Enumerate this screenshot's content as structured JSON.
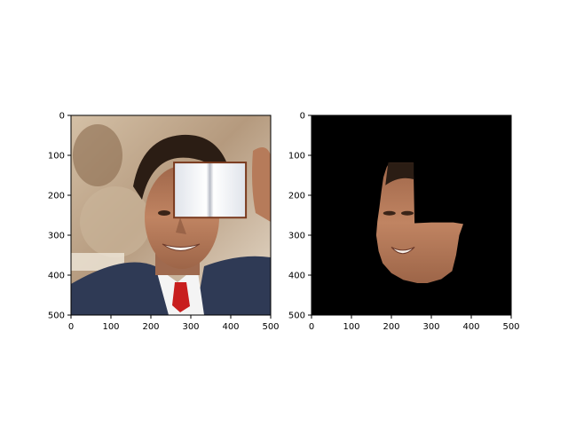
{
  "chart_data": [
    {
      "type": "image",
      "description_panel": "left",
      "xlim": [
        0,
        500
      ],
      "ylim": [
        500,
        0
      ],
      "xticks": [
        0,
        100,
        200,
        300,
        400,
        500
      ],
      "yticks": [
        0,
        100,
        200,
        300,
        400,
        500
      ],
      "xtick_labels": [
        "0",
        "100",
        "200",
        "300",
        "400",
        "500"
      ],
      "ytick_labels": [
        "0",
        "100",
        "200",
        "300",
        "400",
        "500"
      ],
      "content": {
        "background_color": "#b59a7e",
        "book_occluder": {
          "x0": 258,
          "y0": 118,
          "x1": 438,
          "y1": 256
        }
      }
    },
    {
      "type": "image",
      "description_panel": "right",
      "xlim": [
        0,
        500
      ],
      "ylim": [
        500,
        0
      ],
      "xticks": [
        0,
        100,
        200,
        300,
        400,
        500
      ],
      "yticks": [
        0,
        100,
        200,
        300,
        400,
        500
      ],
      "xtick_labels": [
        "0",
        "100",
        "200",
        "300",
        "400",
        "500"
      ],
      "ytick_labels": [
        "0",
        "100",
        "200",
        "300",
        "400",
        "500"
      ],
      "content": {
        "background_color": "#000000",
        "face_mask_polygon": [
          [
            195,
            118
          ],
          [
            255,
            118
          ],
          [
            258,
            270
          ],
          [
            300,
            268
          ],
          [
            355,
            268
          ],
          [
            380,
            272
          ],
          [
            370,
            300
          ],
          [
            362,
            350
          ],
          [
            352,
            390
          ],
          [
            325,
            410
          ],
          [
            290,
            420
          ],
          [
            265,
            420
          ],
          [
            230,
            412
          ],
          [
            200,
            395
          ],
          [
            178,
            370
          ],
          [
            168,
            340
          ],
          [
            162,
            300
          ],
          [
            165,
            265
          ],
          [
            170,
            230
          ],
          [
            175,
            190
          ],
          [
            180,
            155
          ],
          [
            188,
            130
          ]
        ]
      }
    }
  ]
}
